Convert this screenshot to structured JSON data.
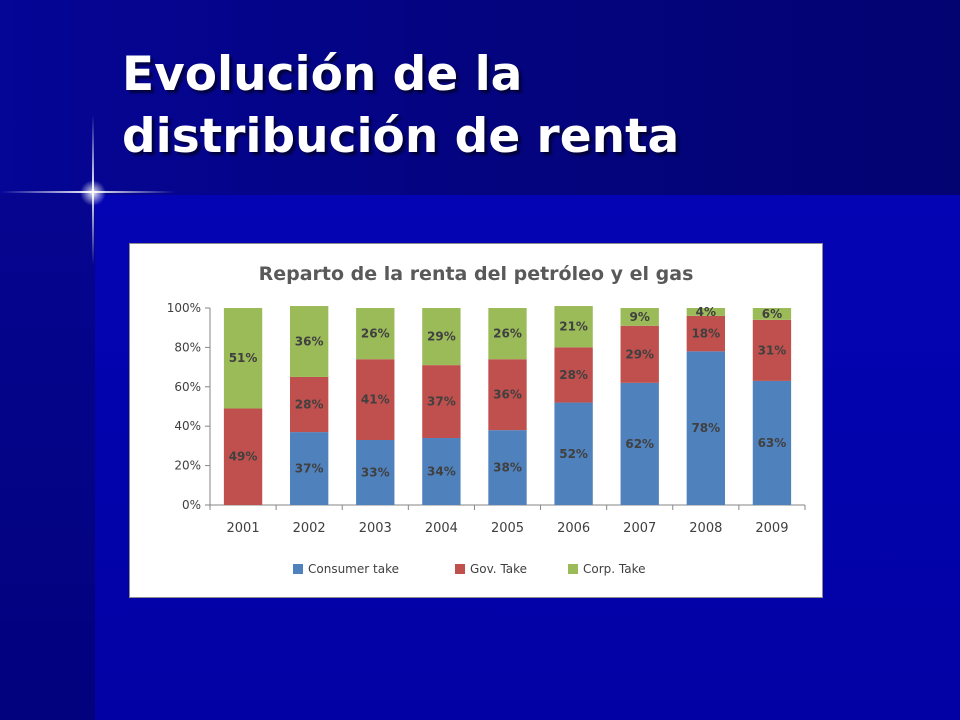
{
  "slide": {
    "title_line1": "Evolución de la",
    "title_line2": "distribución de renta"
  },
  "chart_data": {
    "type": "bar",
    "stacked": true,
    "title": "Reparto de la renta del petróleo y el gas",
    "categories": [
      "2001",
      "2002",
      "2003",
      "2004",
      "2005",
      "2006",
      "2007",
      "2008",
      "2009"
    ],
    "series": [
      {
        "name": "Consumer take",
        "color": "#4f81bd",
        "values": [
          0,
          37,
          33,
          34,
          38,
          52,
          62,
          78,
          63
        ]
      },
      {
        "name": "Gov. Take",
        "color": "#c0504d",
        "values": [
          49,
          28,
          41,
          37,
          36,
          28,
          29,
          18,
          31
        ]
      },
      {
        "name": "Corp. Take",
        "color": "#9bbb59",
        "values": [
          51,
          36,
          26,
          29,
          26,
          21,
          9,
          4,
          6
        ]
      }
    ],
    "y_ticks": [
      "0%",
      "20%",
      "40%",
      "60%",
      "80%",
      "100%"
    ],
    "ylim": [
      0,
      100
    ],
    "ylabel": "",
    "xlabel": "",
    "grid": false,
    "legend_position": "bottom"
  }
}
